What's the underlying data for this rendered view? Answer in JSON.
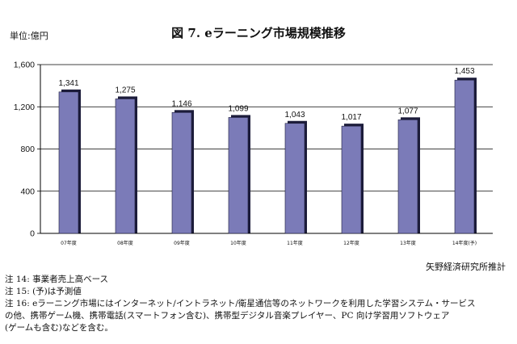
{
  "unit_label": "単位:億円",
  "source": "矢野経済研究所推計",
  "notes": [
    "注 14:  事業者売上高ベース",
    "注 15: (予)は予測値",
    "注 16: eラーニング市場にはインターネット/イントラネット/衛星通信等のネットワークを利用した学習システム・サービス",
    "の他、携帯ゲーム機、携帯電話(スマートフォン含む)、携帯型デジタル音楽プレイヤー、PC  向け学習用ソフトウェア",
    "(ゲームも含む)などを含む。"
  ],
  "colors": {
    "bar": "#7b7bb8",
    "bar_shadow": "#1c1c3a",
    "grid": "#000000"
  },
  "chart_data": {
    "type": "bar",
    "title": "図 7. eラーニング市場規模推移",
    "xlabel": "",
    "ylabel": "",
    "categories": [
      "07年度",
      "08年度",
      "09年度",
      "10年度",
      "11年度",
      "12年度",
      "13年度",
      "14年度(予)"
    ],
    "values": [
      1341,
      1275,
      1146,
      1099,
      1043,
      1017,
      1077,
      1453
    ],
    "value_labels": [
      "1,341",
      "1,275",
      "1,146",
      "1,099",
      "1,043",
      "1,017",
      "1,077",
      "1,453"
    ],
    "ylim": [
      0,
      1600
    ],
    "yticks": [
      0,
      400,
      800,
      1200,
      1600
    ],
    "ytick_labels": [
      "0",
      "400",
      "800",
      "1,200",
      "1,600"
    ],
    "grid": true,
    "legend": "none"
  }
}
